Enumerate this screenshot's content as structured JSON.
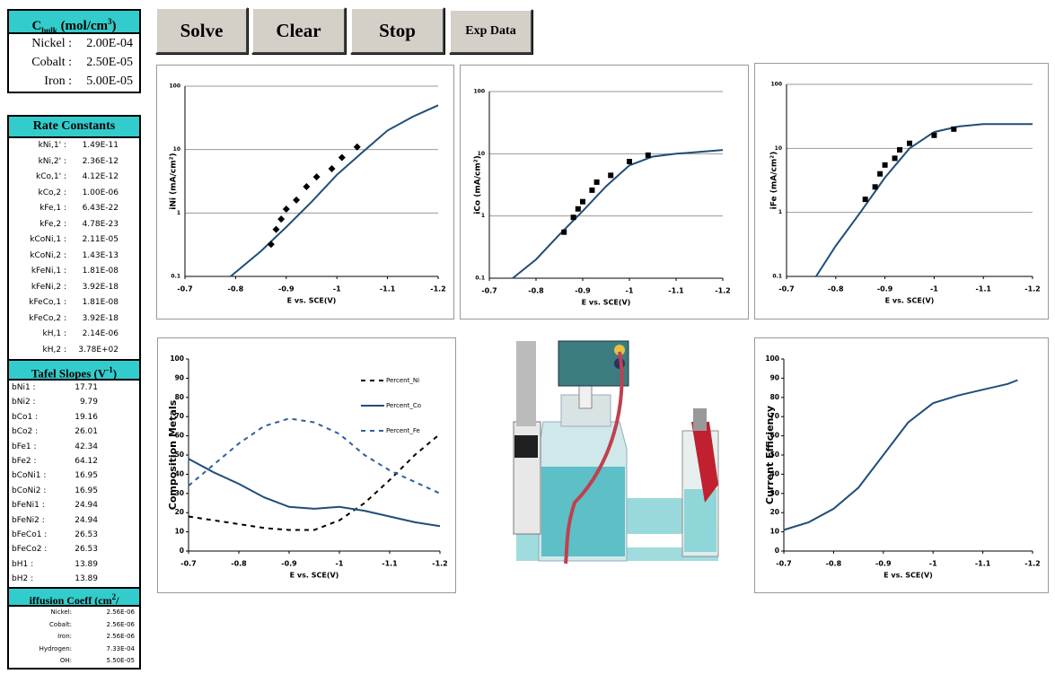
{
  "buttons": [
    "Solve",
    "Clear",
    "Stop",
    "Exp Data"
  ],
  "bulk": {
    "title": {
      "main": "C",
      "sub": "bulk",
      "unit": " (mol/cm",
      "sup": "3",
      "close": ")"
    },
    "rows": [
      [
        "Nickel :",
        "2.00E-04"
      ],
      [
        "Cobalt :",
        "2.50E-05"
      ],
      [
        "Iron :",
        "5.00E-05"
      ]
    ]
  },
  "rate_constants": {
    "title": {
      "main": "Rate Constants"
    },
    "rows": [
      [
        "kNi,1' :",
        "1.49E-11"
      ],
      [
        "kNi,2' :",
        "2.36E-12"
      ],
      [
        "kCo,1' :",
        "4.12E-12"
      ],
      [
        "kCo,2 :",
        "1.00E-06"
      ],
      [
        "kFe,1 :",
        "6.43E-22"
      ],
      [
        "kFe,2 :",
        "4.78E-23"
      ],
      [
        "kCoNi,1 :",
        "2.11E-05"
      ],
      [
        "kCoNi,2 :",
        "1.43E-13"
      ],
      [
        "kFeNi,1 :",
        "1.81E-08"
      ],
      [
        "kFeNi,2 :",
        "3.92E-18"
      ],
      [
        "kFeCo,1 :",
        "1.81E-08"
      ],
      [
        "kFeCo,2 :",
        "3.92E-18"
      ],
      [
        "kH,1 :",
        "2.14E-06"
      ],
      [
        "kH,2 :",
        "3.78E+02"
      ]
    ]
  },
  "tafel": {
    "title": {
      "main": "Tafel Slopes (V",
      "sup": "-1",
      "close": ")"
    },
    "rows": [
      [
        "bNi1 :",
        "17.71"
      ],
      [
        "bNi2 :",
        "9.79"
      ],
      [
        "bCo1 :",
        "19.16"
      ],
      [
        "bCo2 :",
        "26.01"
      ],
      [
        "bFe1 :",
        "42.34"
      ],
      [
        "bFe2 :",
        "64.12"
      ],
      [
        "bCoNi1 :",
        "16.95"
      ],
      [
        "bCoNi2 :",
        "16.95"
      ],
      [
        "bFeNi1 :",
        "24.94"
      ],
      [
        "bFeNi2 :",
        "24.94"
      ],
      [
        "bFeCo1 :",
        "26.53"
      ],
      [
        "bFeCo2 :",
        "26.53"
      ],
      [
        "bH1 :",
        "13.89"
      ],
      [
        "bH2 :",
        "13.89"
      ]
    ]
  },
  "diffusion": {
    "title": {
      "main": "iffusion Coeff (cm",
      "sup": "2",
      "close": "/"
    },
    "rows": [
      [
        "Nickel:",
        "2.56E-06"
      ],
      [
        "Cobalt:",
        "2.56E-06"
      ],
      [
        "Iron:",
        "2.56E-06"
      ],
      [
        "Hydrogen:",
        "7.33E-04"
      ],
      [
        "OH:",
        "5.50E-05"
      ]
    ]
  },
  "chart_data": [
    {
      "type": "line",
      "x_label": "E vs. SCE(V)",
      "y_label": "iNi (mA/cm²)",
      "log_y": true,
      "grid": true,
      "xlim": [
        -0.7,
        -1.2
      ],
      "xticks": [
        -0.7,
        -0.8,
        -0.9,
        -1,
        -1.1,
        -1.2
      ],
      "ylim": [
        0.1,
        100
      ],
      "yticks": [
        0.1,
        1,
        10,
        100
      ],
      "series": [
        {
          "mode": "line",
          "color": "#1f4e7a",
          "x": [
            -0.79,
            -0.85,
            -0.9,
            -0.95,
            -1.0,
            -1.05,
            -1.1,
            -1.15,
            -1.2
          ],
          "values": [
            0.1,
            0.25,
            0.6,
            1.5,
            4,
            9,
            20,
            33,
            50
          ]
        },
        {
          "mode": "markers",
          "marker": "diamond",
          "color": "#000000",
          "x": [
            -0.87,
            -0.88,
            -0.89,
            -0.9,
            -0.92,
            -0.94,
            -0.96,
            -0.99,
            -1.01,
            -1.04
          ],
          "values": [
            0.32,
            0.55,
            0.8,
            1.15,
            1.6,
            2.6,
            3.7,
            5,
            7.5,
            11
          ]
        }
      ]
    },
    {
      "type": "line",
      "x_label": "E vs. SCE(V)",
      "y_label": "iCo (mA/cm²)",
      "log_y": true,
      "grid": true,
      "xlim": [
        -0.7,
        -1.2
      ],
      "xticks": [
        -0.7,
        -0.8,
        -0.9,
        -1,
        -1.1,
        -1.2
      ],
      "ylim": [
        0.1,
        100
      ],
      "yticks": [
        0.1,
        1,
        10,
        100
      ],
      "series": [
        {
          "mode": "line",
          "color": "#1f4e7a",
          "x": [
            -0.75,
            -0.8,
            -0.85,
            -0.9,
            -0.95,
            -1.0,
            -1.05,
            -1.1,
            -1.2
          ],
          "values": [
            0.1,
            0.2,
            0.5,
            1.2,
            3,
            6.5,
            9,
            10,
            11.5
          ]
        },
        {
          "mode": "markers",
          "marker": "square",
          "color": "#000000",
          "x": [
            -0.86,
            -0.88,
            -0.89,
            -0.9,
            -0.92,
            -0.93,
            -0.96,
            -1.0,
            -1.04
          ],
          "values": [
            0.55,
            0.95,
            1.3,
            1.7,
            2.6,
            3.5,
            4.5,
            7.5,
            9.5
          ]
        }
      ]
    },
    {
      "type": "line",
      "x_label": "E vs. SCE(V)",
      "y_label": "iFe (mA/cm²)",
      "log_y": true,
      "grid": true,
      "xlim": [
        -0.7,
        -1.2
      ],
      "xticks": [
        -0.7,
        -0.8,
        -0.9,
        -1,
        -1.1,
        -1.2
      ],
      "ylim": [
        0.1,
        100
      ],
      "yticks": [
        0.1,
        1,
        10,
        100
      ],
      "series": [
        {
          "mode": "line",
          "color": "#1f4e7a",
          "x": [
            -0.76,
            -0.8,
            -0.85,
            -0.9,
            -0.95,
            -1.0,
            -1.05,
            -1.1,
            -1.2
          ],
          "values": [
            0.1,
            0.3,
            1,
            3.5,
            10,
            18,
            22,
            24,
            24
          ]
        },
        {
          "mode": "markers",
          "marker": "square",
          "color": "#000000",
          "x": [
            -0.86,
            -0.88,
            -0.89,
            -0.9,
            -0.92,
            -0.93,
            -0.95,
            -1.0,
            -1.04
          ],
          "values": [
            1.6,
            2.5,
            4,
            5.5,
            7,
            9.5,
            12,
            16,
            20
          ]
        }
      ]
    },
    {
      "type": "line",
      "x_label": "E vs. SCE(V)",
      "y_label": "Composition Metals",
      "log_y": false,
      "grid": false,
      "legend": "upper right",
      "xlim": [
        -0.7,
        -1.2
      ],
      "xticks": [
        -0.7,
        -0.8,
        -0.9,
        -1,
        -1.1,
        -1.2
      ],
      "ylim": [
        0,
        100
      ],
      "yticks": [
        0,
        10,
        20,
        30,
        40,
        50,
        60,
        70,
        80,
        90,
        100
      ],
      "series": [
        {
          "name": "Percent_Ni",
          "mode": "line",
          "dash": true,
          "color": "#000000",
          "x": [
            -0.7,
            -0.75,
            -0.8,
            -0.85,
            -0.9,
            -0.95,
            -1.0,
            -1.05,
            -1.1,
            -1.15,
            -1.2
          ],
          "values": [
            18,
            16,
            14,
            12,
            11,
            11,
            16,
            25,
            37,
            50,
            61
          ]
        },
        {
          "name": "Percent_Co",
          "mode": "line",
          "dash": false,
          "color": "#1f4e7a",
          "x": [
            -0.7,
            -0.75,
            -0.8,
            -0.85,
            -0.9,
            -0.95,
            -1.0,
            -1.05,
            -1.1,
            -1.15,
            -1.2
          ],
          "values": [
            48,
            41,
            35,
            28,
            23,
            22,
            23,
            21,
            18,
            15,
            13
          ]
        },
        {
          "name": "Percent_Fe",
          "mode": "line",
          "dash": true,
          "color": "#2e5f9e",
          "x": [
            -0.7,
            -0.75,
            -0.8,
            -0.85,
            -0.9,
            -0.95,
            -1.0,
            -1.05,
            -1.1,
            -1.15,
            -1.2
          ],
          "values": [
            34,
            45,
            56,
            65,
            69,
            67,
            61,
            50,
            42,
            36,
            30
          ]
        }
      ]
    },
    {
      "type": "line",
      "x_label": "E vs. SCE(V)",
      "y_label": "Current Efficiency",
      "log_y": false,
      "grid": false,
      "xlim": [
        -0.7,
        -1.2
      ],
      "xticks": [
        -0.7,
        -0.8,
        -0.9,
        -1,
        -1.1,
        -1.2
      ],
      "ylim": [
        0,
        100
      ],
      "yticks": [
        0,
        10,
        20,
        30,
        40,
        50,
        60,
        70,
        80,
        90,
        100
      ],
      "series": [
        {
          "mode": "line",
          "color": "#1f4e7a",
          "x": [
            -0.7,
            -0.75,
            -0.8,
            -0.85,
            -0.9,
            -0.95,
            -1.0,
            -1.05,
            -1.1,
            -1.15,
            -1.17
          ],
          "values": [
            11,
            15,
            22,
            33,
            50,
            67,
            77,
            81,
            84,
            87,
            89
          ]
        }
      ]
    }
  ]
}
